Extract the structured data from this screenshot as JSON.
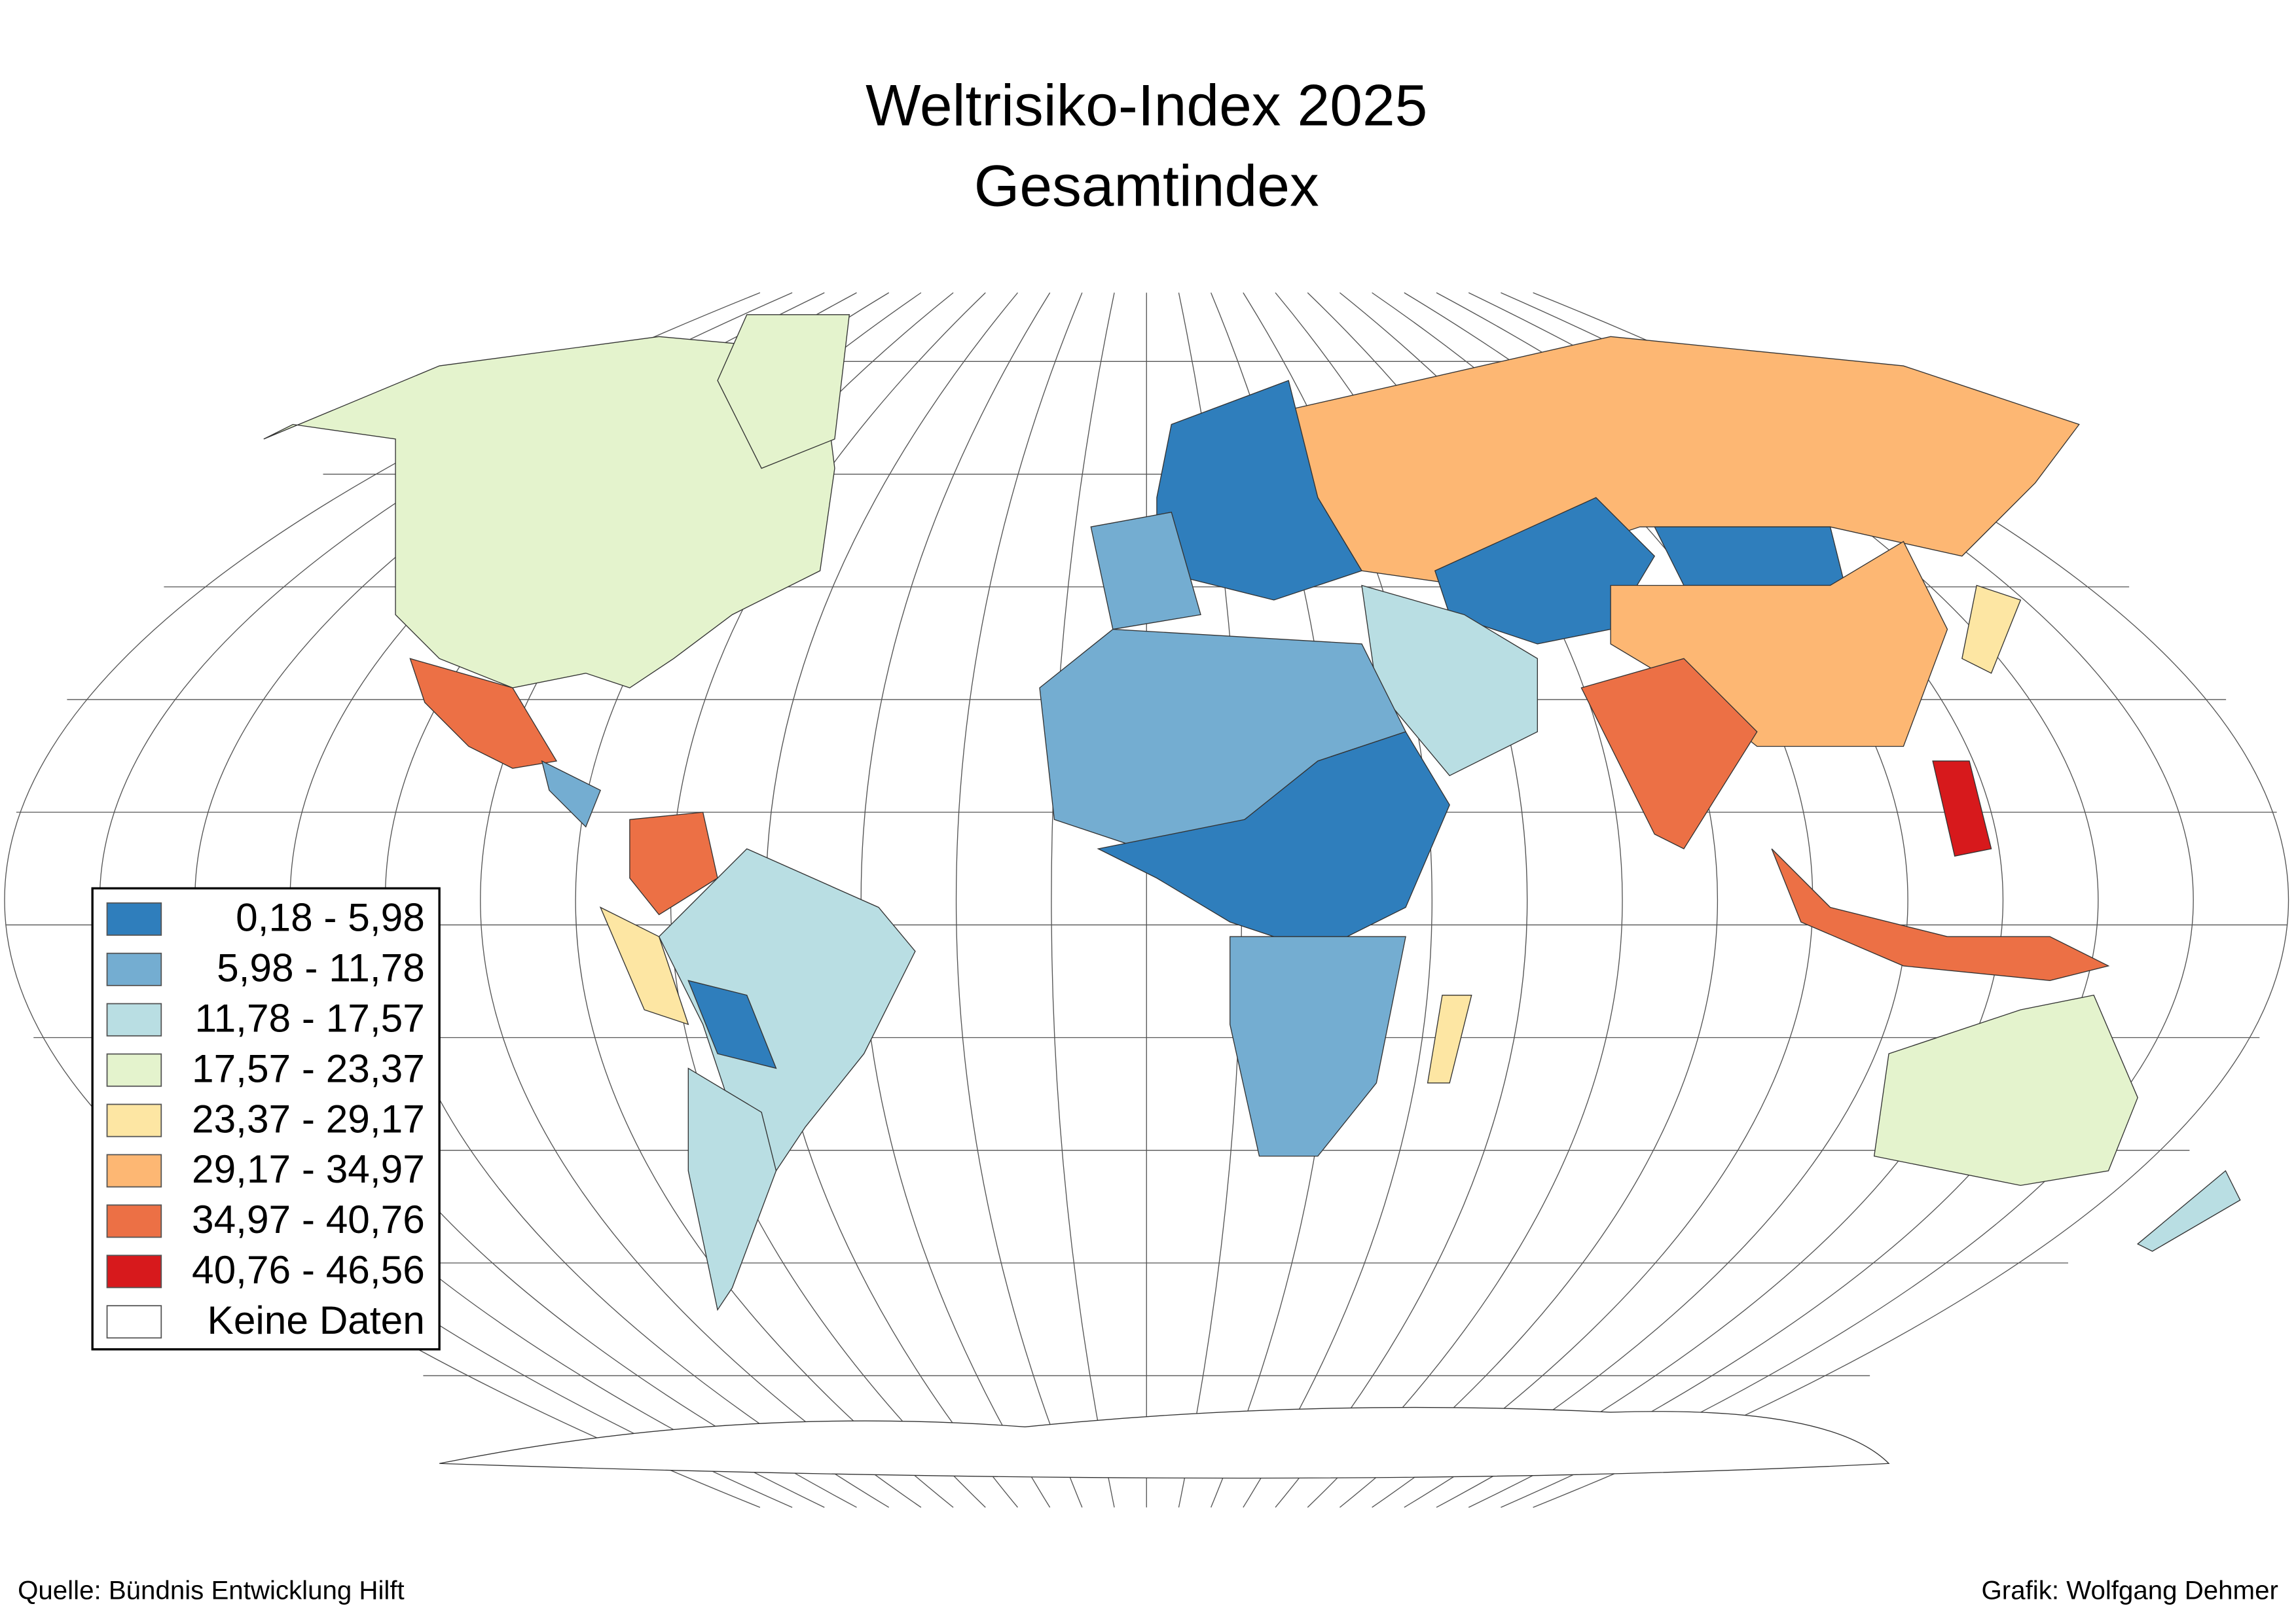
{
  "title": [
    "Weltrisiko-Index 2025",
    "Gesamtindex"
  ],
  "legend": {
    "items": [
      {
        "label": "0,18 - 5,98",
        "color": "#2f7ebc"
      },
      {
        "label": "5,98 - 11,78",
        "color": "#74add1"
      },
      {
        "label": "11,78 - 17,57",
        "color": "#b9dee3"
      },
      {
        "label": "17,57 - 23,37",
        "color": "#e4f3cd"
      },
      {
        "label": "23,37 - 29,17",
        "color": "#fde6a3"
      },
      {
        "label": "29,17 - 34,97",
        "color": "#fdb773"
      },
      {
        "label": "34,97 - 40,76",
        "color": "#ec7045"
      },
      {
        "label": "40,76 - 46,56",
        "color": "#d7191c"
      },
      {
        "label": "Keine Daten",
        "color": "#ffffff"
      }
    ]
  },
  "source": "Quelle: Bündnis Entwicklung Hilft",
  "credit": "Grafik: Wolfgang Dehmer"
}
